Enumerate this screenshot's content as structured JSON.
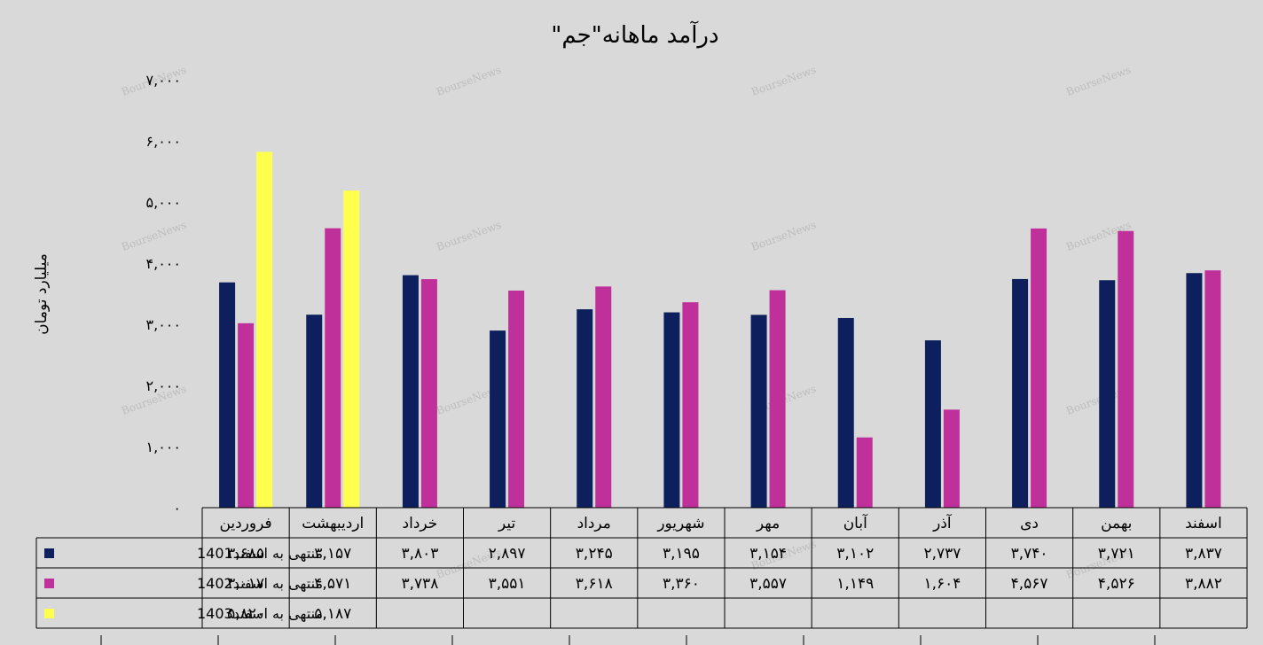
{
  "watermark": "BourseNews",
  "chart_data": {
    "type": "bar",
    "title": "درآمد ماهانه\"جم\"",
    "ylabel": "میلیارد تومان",
    "ylim": [
      0,
      7000
    ],
    "yticks": [
      0,
      1000,
      2000,
      3000,
      4000,
      5000,
      6000,
      7000
    ],
    "ytick_labels": [
      "۰",
      "۱,۰۰۰",
      "۲,۰۰۰",
      "۳,۰۰۰",
      "۴,۰۰۰",
      "۵,۰۰۰",
      "۶,۰۰۰",
      "۷,۰۰۰"
    ],
    "categories": [
      "فروردین",
      "اردیبهشت",
      "خرداد",
      "تیر",
      "مرداد",
      "شهریور",
      "مهر",
      "آبان",
      "آذر",
      "دی",
      "بهمن",
      "اسفند"
    ],
    "legend_position": "data-table",
    "series": [
      {
        "name": "منتهی به اسفند1401",
        "color": "#0d1f5c",
        "values": [
          3685,
          3157,
          3803,
          2897,
          3245,
          3195,
          3154,
          3102,
          2737,
          3740,
          3721,
          3837
        ],
        "labels": [
          "۳,۶۸۵",
          "۳,۱۵۷",
          "۳,۸۰۳",
          "۲,۸۹۷",
          "۳,۲۴۵",
          "۳,۱۹۵",
          "۳,۱۵۴",
          "۳,۱۰۲",
          "۲,۷۳۷",
          "۳,۷۴۰",
          "۳,۷۲۱",
          "۳,۸۳۷"
        ]
      },
      {
        "name": "منتهی به اسفند1402",
        "color": "#c0309b",
        "values": [
          3017,
          4571,
          3738,
          3551,
          3618,
          3360,
          3557,
          1149,
          1604,
          4567,
          4526,
          3882
        ],
        "labels": [
          "۳,۰۱۷",
          "۴,۵۷۱",
          "۳,۷۳۸",
          "۳,۵۵۱",
          "۳,۶۱۸",
          "۳,۳۶۰",
          "۳,۵۵۷",
          "۱,۱۴۹",
          "۱,۶۰۴",
          "۴,۵۶۷",
          "۴,۵۲۶",
          "۳,۸۸۲"
        ]
      },
      {
        "name": "منتهی به اسفند1403",
        "color": "#ffff4d",
        "values": [
          5820,
          5187,
          null,
          null,
          null,
          null,
          null,
          null,
          null,
          null,
          null,
          null
        ],
        "labels": [
          "۵,۸۲۰",
          "۵,۱۸۷",
          "",
          "",
          "",
          "",
          "",
          "",
          "",
          "",
          "",
          ""
        ]
      }
    ]
  }
}
